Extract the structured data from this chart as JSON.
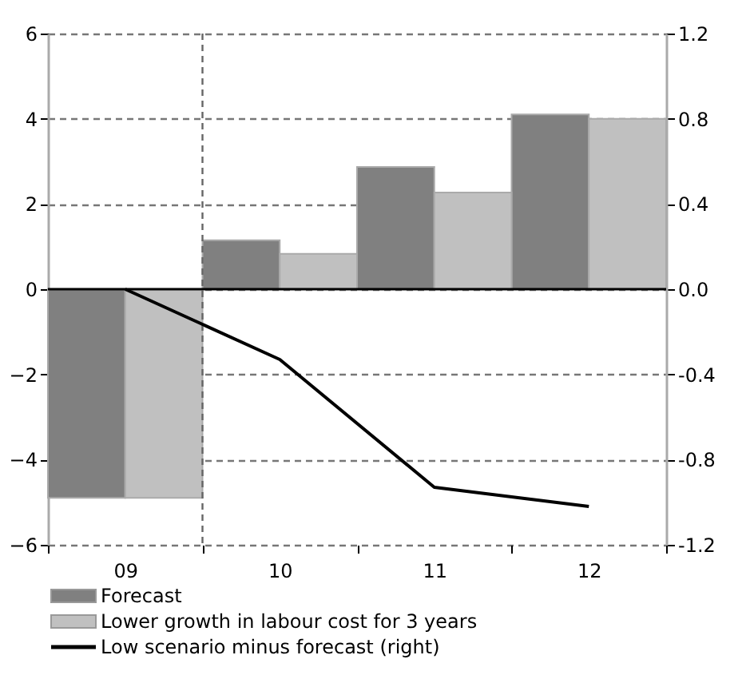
{
  "chart_data": {
    "type": "bar",
    "categories": [
      "09",
      "10",
      "11",
      "12"
    ],
    "series": [
      {
        "name": "Forecast",
        "color": "#808080",
        "values": [
          -4.9,
          1.15,
          2.87,
          4.1
        ]
      },
      {
        "name": "Lower growth in labour cost for 3 years",
        "color": "#c0c0c0",
        "values": [
          -4.9,
          0.83,
          2.27,
          4.0
        ]
      },
      {
        "name": "Low scenario minus forecast (right)",
        "type": "line",
        "axis": "y2",
        "color": "#000000",
        "values": [
          0.0,
          -0.33,
          -0.93,
          -1.02
        ]
      }
    ],
    "ylim": [
      -6,
      6
    ],
    "yticks": [
      -6,
      -4,
      -2,
      0,
      2,
      4,
      6
    ],
    "y2lim": [
      -1.2,
      1.2
    ],
    "y2ticks": [
      {
        "value": -1.2,
        "label": "-1.2"
      },
      {
        "value": -0.8,
        "label": "-0.8"
      },
      {
        "value": -0.4,
        "label": "-0.4"
      },
      {
        "value": 0,
        "label": "0.0"
      },
      {
        "value": 0.4,
        "label": "0.4"
      },
      {
        "value": 0.8,
        "label": "0.8"
      },
      {
        "value": 1.2,
        "label": "1.2"
      }
    ],
    "ref_lines": [
      {
        "axis": "x",
        "value": "10",
        "color": "#666666",
        "line_style": "dashed"
      },
      {
        "axis": "y",
        "value": 0,
        "color": "#000000",
        "line_style": "solid"
      }
    ],
    "grid": "y",
    "legend": "bottom",
    "line_style": "solid",
    "marker": "none"
  }
}
